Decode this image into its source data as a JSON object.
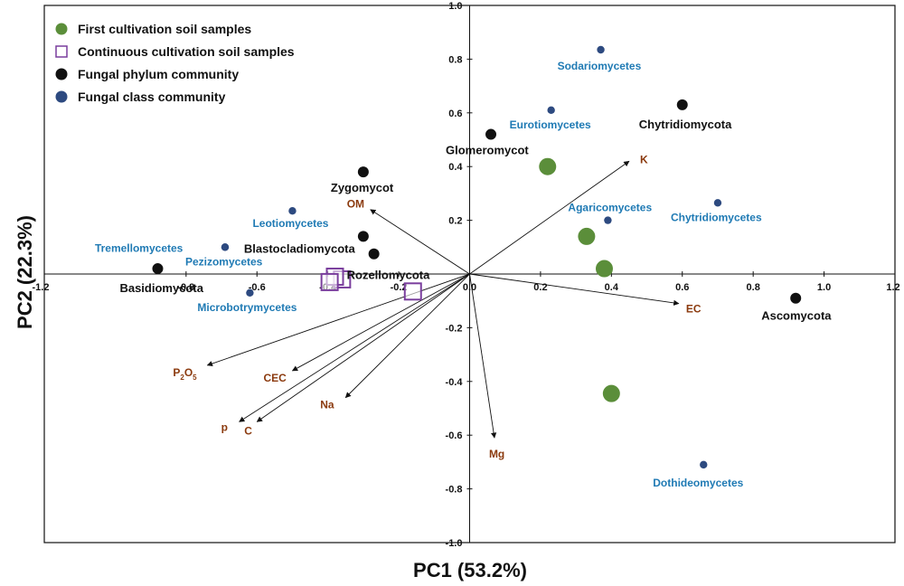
{
  "chart_data": {
    "type": "biplot",
    "xlabel": "PC1 (53.2%)",
    "ylabel": "PC2 (22.3%)",
    "xlim": [
      -1.2,
      1.2
    ],
    "ylim": [
      -1.0,
      1.0
    ],
    "xticks": [
      -1.2,
      -0.8,
      -0.6,
      -0.4,
      -0.2,
      0.0,
      0.2,
      0.4,
      0.6,
      0.8,
      1.0,
      1.2
    ],
    "yticks": [
      -1.0,
      -0.8,
      -0.6,
      -0.4,
      -0.2,
      0.0,
      0.2,
      0.4,
      0.6,
      0.8,
      1.0
    ],
    "legend": {
      "placement": "top-left",
      "entries": [
        {
          "label": "First cultivation soil samples",
          "marker": "circle-green"
        },
        {
          "label": "Continuous cultivation soil samples",
          "marker": "square-purple"
        },
        {
          "label": "Fungal phylum community",
          "marker": "circle-black"
        },
        {
          "label": "Fungal class community",
          "marker": "circle-blue"
        }
      ]
    },
    "colors": {
      "green": "#5b8e3a",
      "purple": "#7a3e9d",
      "black": "#111111",
      "blue": "#2d4a80",
      "blue_label": "#1f7ab4",
      "env_label": "#8b3a0e"
    },
    "first_cultivation_samples": [
      {
        "x": 0.22,
        "y": 0.4
      },
      {
        "x": 0.33,
        "y": 0.14
      },
      {
        "x": 0.38,
        "y": 0.02
      },
      {
        "x": 0.4,
        "y": -0.445
      }
    ],
    "continuous_cultivation_samples": [
      {
        "x": -0.36,
        "y": -0.02
      },
      {
        "x": -0.38,
        "y": -0.01
      },
      {
        "x": -0.395,
        "y": -0.03
      },
      {
        "x": -0.16,
        "y": -0.065
      }
    ],
    "phylum_points": [
      {
        "name": "Basidiomycota",
        "x": -0.88,
        "y": 0.02
      },
      {
        "name": "Zygomycot",
        "x": -0.3,
        "y": 0.38
      },
      {
        "name": "Blastocladiomycota",
        "x": -0.3,
        "y": 0.14
      },
      {
        "name": "Rozellomycota",
        "x": -0.27,
        "y": 0.075
      },
      {
        "name": "Glomeromycot",
        "x": 0.06,
        "y": 0.52
      },
      {
        "name": "Chytridiomycota",
        "x": 0.6,
        "y": 0.63
      },
      {
        "name": "Ascomycota",
        "x": 0.92,
        "y": -0.09
      }
    ],
    "class_points": [
      {
        "name": "Tremellomycetes",
        "x": -0.69,
        "y": 0.1
      },
      {
        "name": "Pezizomycetes",
        "x": -0.69,
        "y": 0.1
      },
      {
        "name": "Leotiomycetes",
        "x": -0.5,
        "y": 0.235
      },
      {
        "name": "Microbotrymycetes",
        "x": -0.62,
        "y": -0.07
      },
      {
        "name": "Sodariomycetes",
        "x": 0.37,
        "y": 0.835
      },
      {
        "name": "Eurotiomycetes",
        "x": 0.23,
        "y": 0.61
      },
      {
        "name": "Agaricomycetes",
        "x": 0.39,
        "y": 0.2
      },
      {
        "name": "Chytridiomycetes",
        "x": 0.7,
        "y": 0.265
      },
      {
        "name": "Dothideomycetes",
        "x": 0.66,
        "y": -0.71
      }
    ],
    "env_vectors": [
      {
        "name": "K",
        "x": 0.45,
        "y": 0.42
      },
      {
        "name": "OM",
        "x": -0.28,
        "y": 0.24
      },
      {
        "name": "EC",
        "x": 0.59,
        "y": -0.11
      },
      {
        "name": "P2O5",
        "label_main": "P",
        "label_sub": "2",
        "label_main2": "O",
        "label_sub2": "5",
        "x": -0.74,
        "y": -0.34
      },
      {
        "name": "CEC",
        "x": -0.5,
        "y": -0.36
      },
      {
        "name": "p",
        "x": -0.65,
        "y": -0.55
      },
      {
        "name": "C",
        "x": -0.6,
        "y": -0.55
      },
      {
        "name": "Na",
        "x": -0.35,
        "y": -0.46
      },
      {
        "name": "Mg",
        "x": 0.07,
        "y": -0.61
      }
    ]
  }
}
